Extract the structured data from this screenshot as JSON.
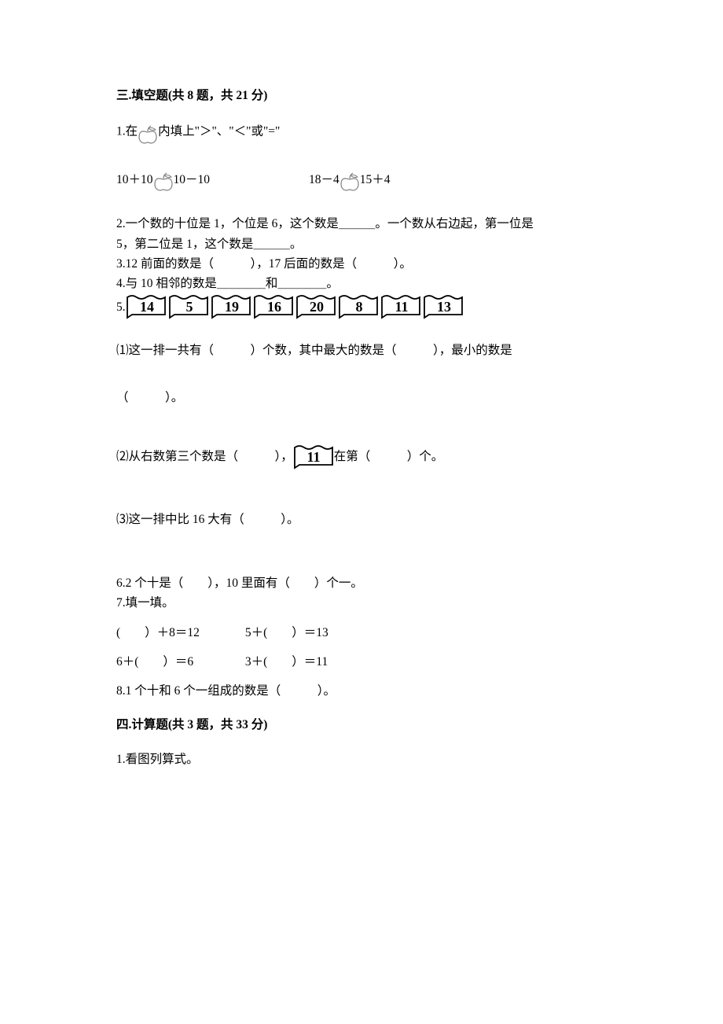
{
  "section3": {
    "header": "三.填空题(共 8 题，共 21 分)",
    "q1_prefix": "1.在",
    "q1_suffix": "内填上\"＞\"、\"＜\"或\"=\"",
    "q1_eq1_left": "10＋10",
    "q1_eq1_right": "10－10",
    "q1_eq2_left": "18－4",
    "q1_eq2_right": "15＋4",
    "q2_line1": "2.一个数的十位是 1，个位是 6，这个数是＿＿＿。一个数从右边起，第一位是",
    "q2_line2": "5，第二位是 1，这个数是＿＿＿。",
    "q3": "3.12 前面的数是（　　　），17 后面的数是（　　　）。",
    "q4": "4.与 10 相邻的数是＿＿＿＿和＿＿＿＿。",
    "q5_prefix": "5.",
    "q5_flags": [
      "14",
      "5",
      "19",
      "16",
      "20",
      "8",
      "11",
      "13"
    ],
    "q5_sub1": "⑴这一排一共有（　　　）个数，其中最大的数是（　　　），最小的数是",
    "q5_sub1_cont": "（　　　）。",
    "q5_sub2_a": "⑵从右数第三个数是（　　　），",
    "q5_sub2_flag": "11",
    "q5_sub2_b": "在第（　　　）个。",
    "q5_sub3": "⑶这一排中比 16 大有（　　　）。",
    "q6": "6.2 个十是（　　），10 里面有（　　）个一。",
    "q7": "7.填一填。",
    "q7_r1c1": "(　　）＋8＝12",
    "q7_r1c2": "5＋(　　）＝13",
    "q7_r2c1": "6＋(　　）＝6",
    "q7_r2c2": "3＋(　　）＝11",
    "q8": "8.1 个十和 6 个一组成的数是（　　　）。"
  },
  "section4": {
    "header": "四.计算题(共 3 题，共 33 分)",
    "q1": "1.看图列算式。"
  },
  "colors": {
    "text": "#000000",
    "background": "#ffffff",
    "apple_outline": "#808080",
    "flag_outline": "#000000"
  }
}
